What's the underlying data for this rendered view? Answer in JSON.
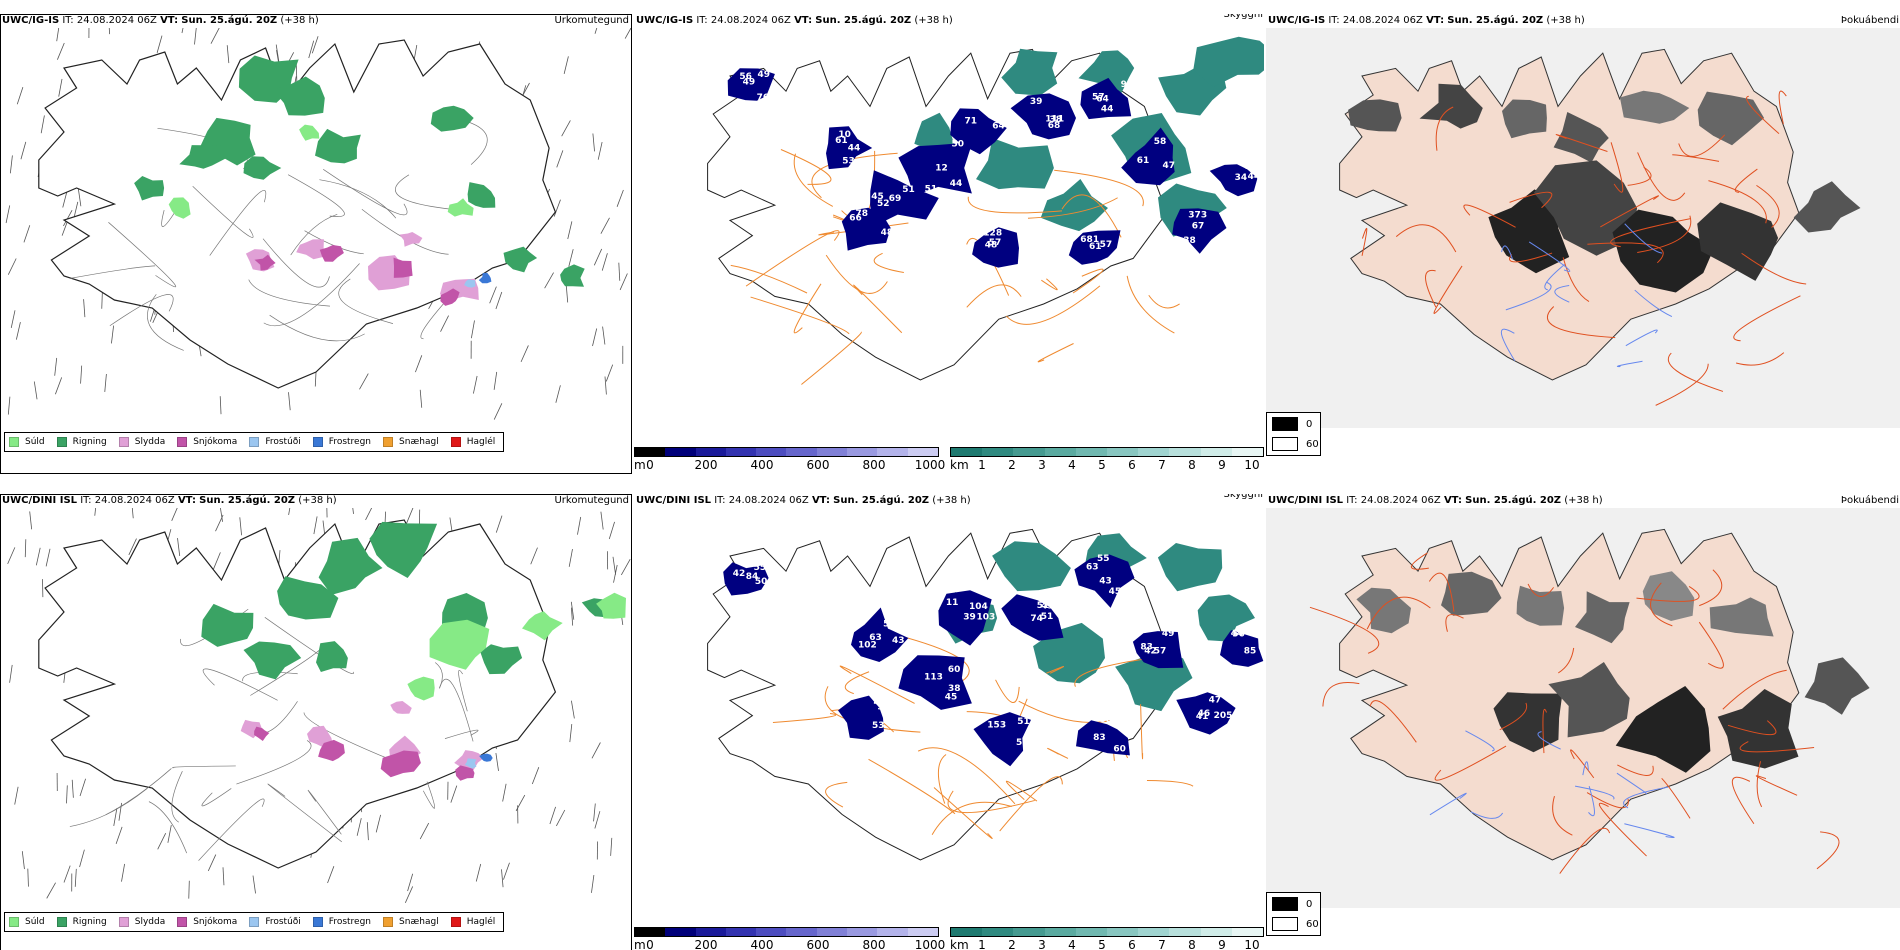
{
  "colors": {
    "suld": "#86ea86",
    "rigning": "#3aa364",
    "slydda": "#e0a0d6",
    "snjokoma": "#c154a8",
    "frostudi": "#9bc6f0",
    "frostregn": "#3a78d6",
    "snaehagl": "#f0a030",
    "haglel": "#e01818",
    "low_cloud_dark": "#000080",
    "visibility_teal": "#2f8a80",
    "land": "#f4dccf",
    "roads": "#e05020"
  },
  "rows": [
    {
      "model": "UWC/IG-IS",
      "it_label": "IT:",
      "it_value": "24.08.2024 06Z",
      "vt_label": "VT:",
      "vt_value": "Sun. 25.ágú. 20Z",
      "lead": "(+38 h)",
      "precip_title": "Úrkomutegund",
      "visibility_title": "Skyggni",
      "cloud_title": "Þokuábendi",
      "cloud_base_labels": [
        "49",
        "10",
        "51",
        "12",
        "54",
        "39",
        "44",
        "47",
        "38",
        "57",
        "57",
        "66",
        "34",
        "49",
        "61",
        "69",
        "51",
        "64",
        "68",
        "64",
        "58",
        "67",
        "61",
        "48",
        "78",
        "96",
        "76",
        "53",
        "52",
        "44",
        "71",
        "111",
        "57",
        "61",
        "373",
        "681",
        "128",
        "485",
        "44",
        "56",
        "44",
        "45",
        "50",
        "75",
        "38",
        "99"
      ]
    },
    {
      "model": "UWC/DINI ISL",
      "it_label": "IT:",
      "it_value": "24.08.2024 06Z",
      "vt_label": "VT:",
      "vt_value": "Sun. 25.ágú. 20Z",
      "lead": "(+38 h)",
      "precip_title": "Úrkomutegund",
      "visibility_title": "Skyggni",
      "cloud_title": "Þokuábendi",
      "cloud_base_labels": [
        "42",
        "63",
        "45",
        "103",
        "52",
        "43",
        "42",
        "47",
        "60",
        "51",
        "57",
        "56",
        "55",
        "52",
        "60",
        "104",
        "74",
        "63",
        "57",
        "46",
        "58",
        "55",
        "44",
        "44",
        "50",
        "102",
        "113",
        "11",
        "41",
        "45",
        "49",
        "205",
        "83",
        "153",
        "53",
        "85",
        "84",
        "43",
        "38",
        "39",
        "51",
        "55",
        "83",
        "41"
      ]
    }
  ],
  "precip_legend": [
    {
      "label": "Súld",
      "color_key": "suld"
    },
    {
      "label": "Rigning",
      "color_key": "rigning"
    },
    {
      "label": "Slydda",
      "color_key": "slydda"
    },
    {
      "label": "Snjókoma",
      "color_key": "snjokoma"
    },
    {
      "label": "Frostúði",
      "color_key": "frostudi"
    },
    {
      "label": "Frostregn",
      "color_key": "frostregn"
    },
    {
      "label": "Snæhagl",
      "color_key": "snaehagl"
    },
    {
      "label": "Haglél",
      "color_key": "haglel"
    }
  ],
  "cloud_base_scale": {
    "unit": "m",
    "ticks": [
      "0",
      "200",
      "400",
      "600",
      "800",
      "1000"
    ],
    "colors": [
      "#000000",
      "#00007a",
      "#1a1a9a",
      "#3333b0",
      "#4d4dc0",
      "#6666cc",
      "#8080d6",
      "#9999e0",
      "#b3b3ea",
      "#ccccf2"
    ]
  },
  "visibility_scale": {
    "unit": "km",
    "ticks": [
      "1",
      "2",
      "3",
      "4",
      "5",
      "6",
      "7",
      "8",
      "9",
      "10"
    ],
    "colors": [
      "#1e7a70",
      "#2f8a80",
      "#459a90",
      "#5aaaa0",
      "#70b8b0",
      "#88c6c0",
      "#a0d4d0",
      "#b8e0dc",
      "#d0ece8",
      "#e8f6f4"
    ]
  },
  "cloud_index_legend": {
    "low_label": "0",
    "high_label": "60"
  }
}
